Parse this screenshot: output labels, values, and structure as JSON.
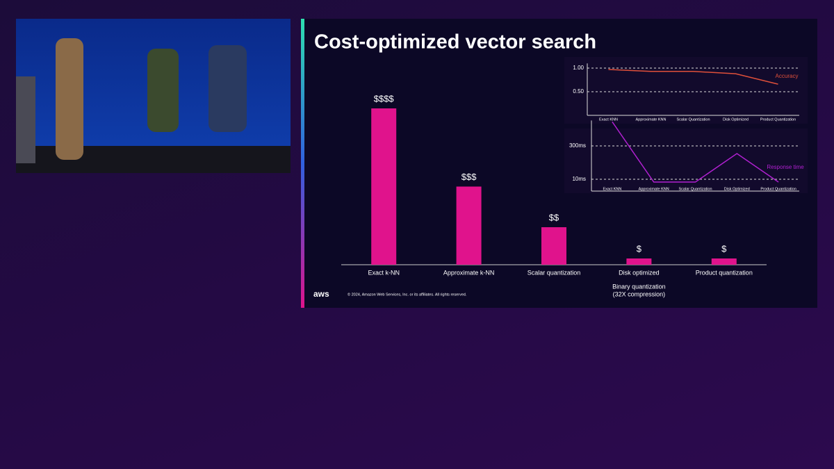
{
  "slide": {
    "title": "Cost-optimized vector search",
    "logo": "aws",
    "footer": "© 2024, Amazon Web Services, Inc. or its affiliates. All rights reserved."
  },
  "chart_data": [
    {
      "type": "bar",
      "categories": [
        "Exact k-NN",
        "Approximate k-NN",
        "Scalar quantization",
        "Disk optimized",
        "Product quantization"
      ],
      "values": [
        100,
        50,
        24,
        4,
        4
      ],
      "value_labels": [
        "$$$$",
        "$$$",
        "$$",
        "$",
        "$"
      ],
      "color": "#e0138c",
      "annotation": [
        "Binary quantization",
        "(32X compression)"
      ]
    },
    {
      "type": "line",
      "categories": [
        "Exact KNN",
        "Approximate KNN",
        "Scalar Quantization",
        "Disk Optimized",
        "Product Quantization"
      ],
      "series": [
        {
          "name": "Accuracy",
          "color": "#e0503a",
          "values": [
            0.97,
            0.93,
            0.93,
            0.88,
            0.66
          ]
        }
      ],
      "ylim": [
        0,
        1.1
      ],
      "yticks": [
        {
          "value": 1,
          "label": "1.00"
        },
        {
          "value": 0.5,
          "label": "0.50"
        }
      ],
      "grid": true,
      "log_scale": false
    },
    {
      "type": "line",
      "categories": [
        "Exact KNN",
        "Approximate KNN",
        "Scalar Quantization",
        "Disk Optimized",
        "Product Quantization"
      ],
      "series": [
        {
          "name": "Response time",
          "color": "#b020d0",
          "values": [
            3500,
            7.5,
            7.5,
            137,
            7.5
          ]
        }
      ],
      "ylim": [
        3,
        4000
      ],
      "yticks": [
        {
          "value": 300,
          "label": "300ms"
        },
        {
          "value": 10,
          "label": "10ms"
        }
      ],
      "grid": true,
      "log_scale": true
    }
  ]
}
